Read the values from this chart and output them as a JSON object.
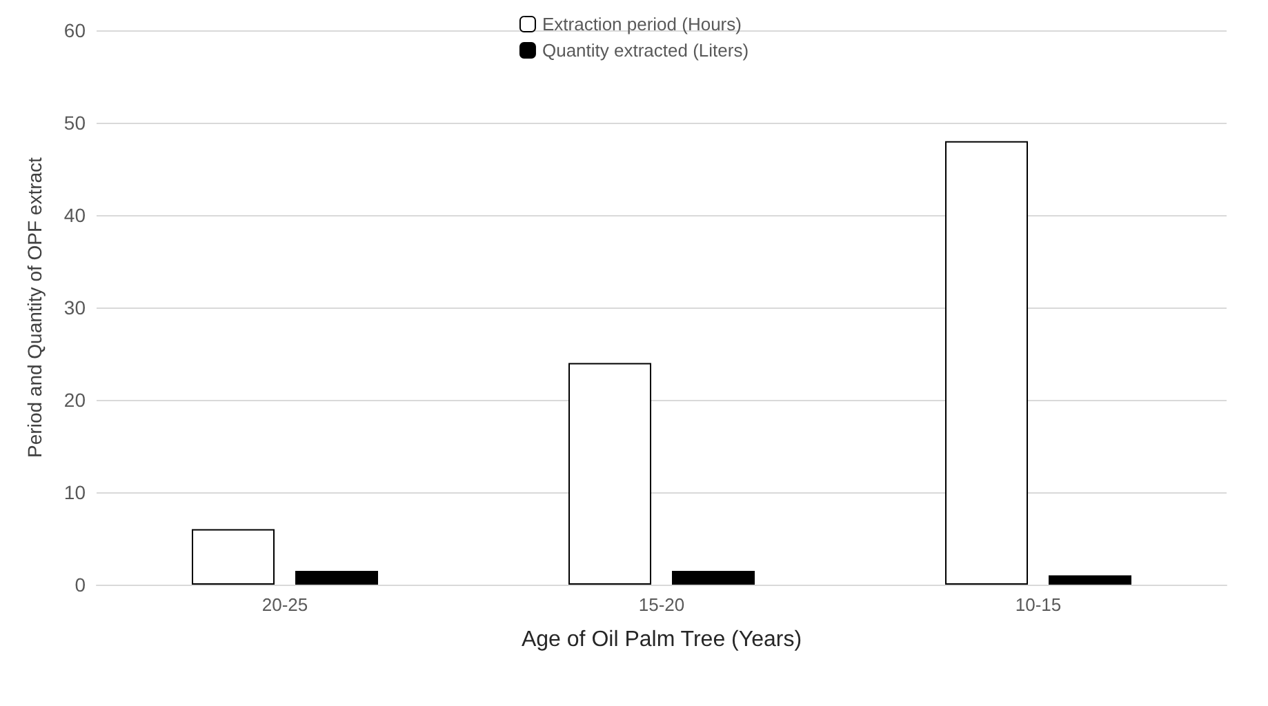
{
  "chart_data": {
    "type": "bar",
    "xlabel": "Age of Oil Palm Tree (Years)",
    "ylabel": "Period and Quantity of OPF extract",
    "categories": [
      "20-25",
      "15-20",
      "10-15"
    ],
    "series": [
      {
        "name": "Extraction period (Hours)",
        "color": "#ffffff",
        "values": [
          6,
          24,
          48
        ]
      },
      {
        "name": "Quantity extracted (Liters)",
        "color": "#000000",
        "values": [
          1.5,
          1.5,
          1
        ]
      }
    ],
    "ylim": [
      0,
      60
    ],
    "yticks": [
      0,
      10,
      20,
      30,
      40,
      50,
      60
    ],
    "grid": "y",
    "legend": "top"
  }
}
